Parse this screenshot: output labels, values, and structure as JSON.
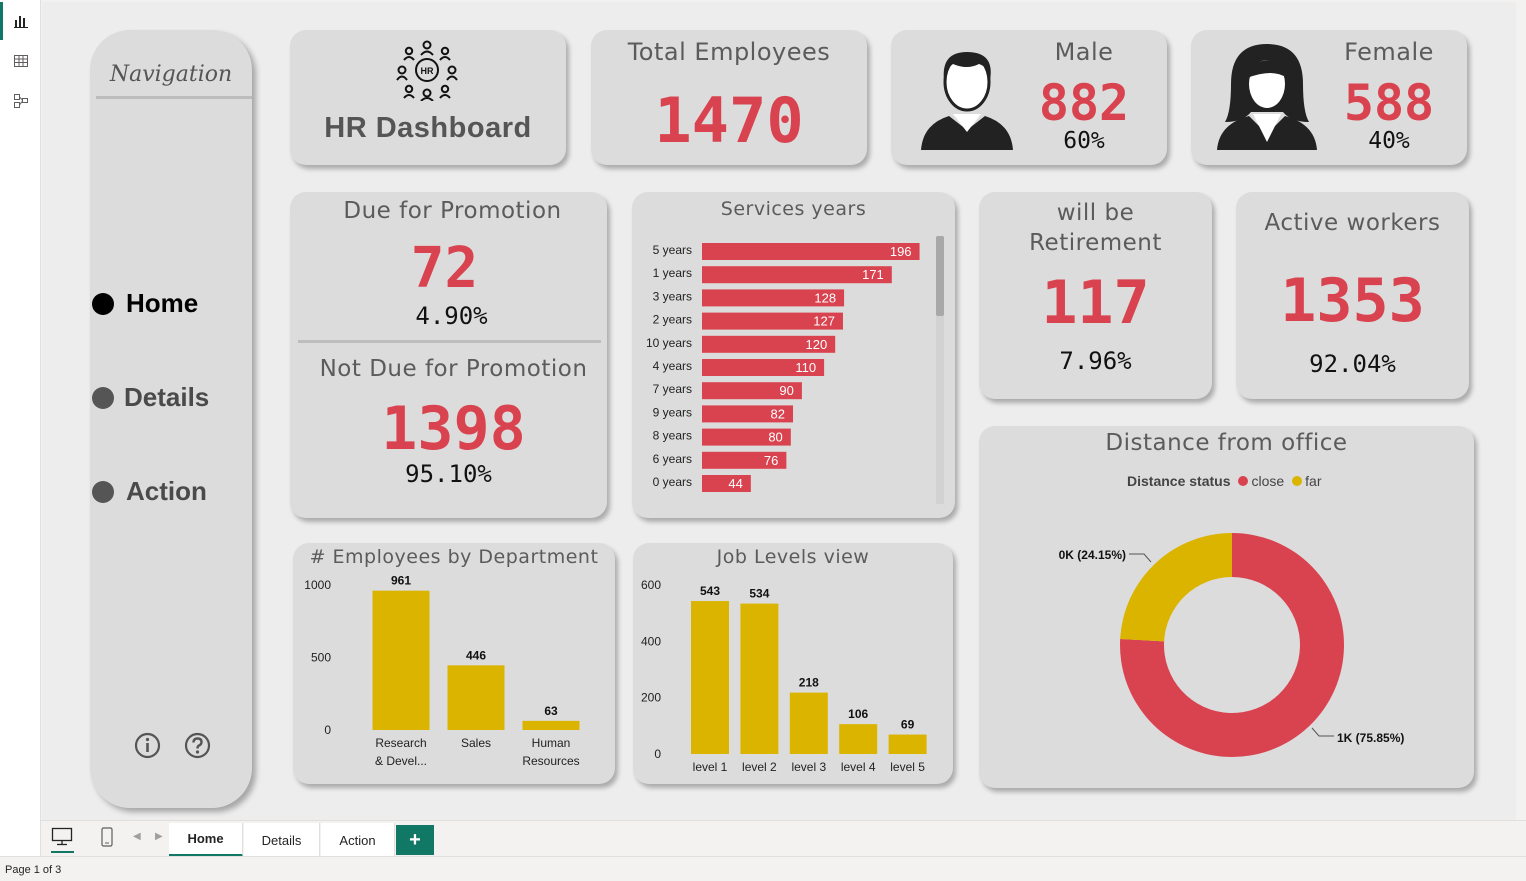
{
  "navigation": {
    "title": "Navigation",
    "items": [
      {
        "label": "Home"
      },
      {
        "label": "Details"
      },
      {
        "label": "Action"
      }
    ]
  },
  "header_card": {
    "title": "HR Dashboard",
    "icon": "hr-team-icon"
  },
  "total_employees": {
    "title": "Total Employees",
    "value": "1470"
  },
  "male": {
    "title": "Male",
    "value": "882",
    "pct": "60%"
  },
  "female": {
    "title": "Female",
    "value": "588",
    "pct": "40%"
  },
  "promotion": {
    "due_title": "Due for Promotion",
    "due_value": "72",
    "due_pct": "4.90%",
    "not_due_title": "Not Due for Promotion",
    "not_due_value": "1398",
    "not_due_pct": "95.10%"
  },
  "retirement": {
    "title_line1": "will be",
    "title_line2": "Retirement",
    "value": "117",
    "pct": "7.96%"
  },
  "active": {
    "title": "Active workers",
    "value": "1353",
    "pct": "92.04%"
  },
  "services": {
    "title": "Services years"
  },
  "departments": {
    "title": "# Employees by Department"
  },
  "job_levels": {
    "title": "Job Levels view"
  },
  "distance": {
    "title": "Distance from office",
    "legend_title": "Distance status"
  },
  "colors": {
    "red": "#d9434f",
    "yellow": "#dbb400",
    "accent": "#117865"
  },
  "chart_data": [
    {
      "type": "bar",
      "orientation": "horizontal",
      "title": "Services years",
      "categories": [
        "5 years",
        "1 years",
        "3 years",
        "2 years",
        "10 years",
        "4 years",
        "7 years",
        "9 years",
        "8 years",
        "6 years",
        "0 years"
      ],
      "values": [
        196,
        171,
        128,
        127,
        120,
        110,
        90,
        82,
        80,
        76,
        44
      ],
      "xlim": [
        0,
        200
      ]
    },
    {
      "type": "bar",
      "title": "# Employees by Department",
      "categories": [
        "Research & Devel...",
        "Sales",
        "Human Resources"
      ],
      "values": [
        961,
        446,
        63
      ],
      "yticks": [
        0,
        500,
        1000
      ],
      "ylim": [
        0,
        1000
      ]
    },
    {
      "type": "bar",
      "title": "Job Levels view",
      "categories": [
        "level 1",
        "level 2",
        "level 3",
        "level 4",
        "level 5"
      ],
      "values": [
        543,
        534,
        218,
        106,
        69
      ],
      "yticks": [
        0,
        200,
        400,
        600
      ],
      "ylim": [
        0,
        600
      ]
    },
    {
      "type": "pie",
      "donut": true,
      "title": "Distance from office",
      "legend": [
        "close",
        "far"
      ],
      "legend_position": "top",
      "slices": [
        {
          "name": "close",
          "value": 75.85,
          "label": "1K (75.85%)"
        },
        {
          "name": "far",
          "value": 24.15,
          "label": "0K (24.15%)"
        }
      ]
    }
  ],
  "bottom_tabs": [
    {
      "label": "Home"
    },
    {
      "label": "Details"
    },
    {
      "label": "Action"
    }
  ],
  "add_tab": "+",
  "status": "Page 1 of 3"
}
